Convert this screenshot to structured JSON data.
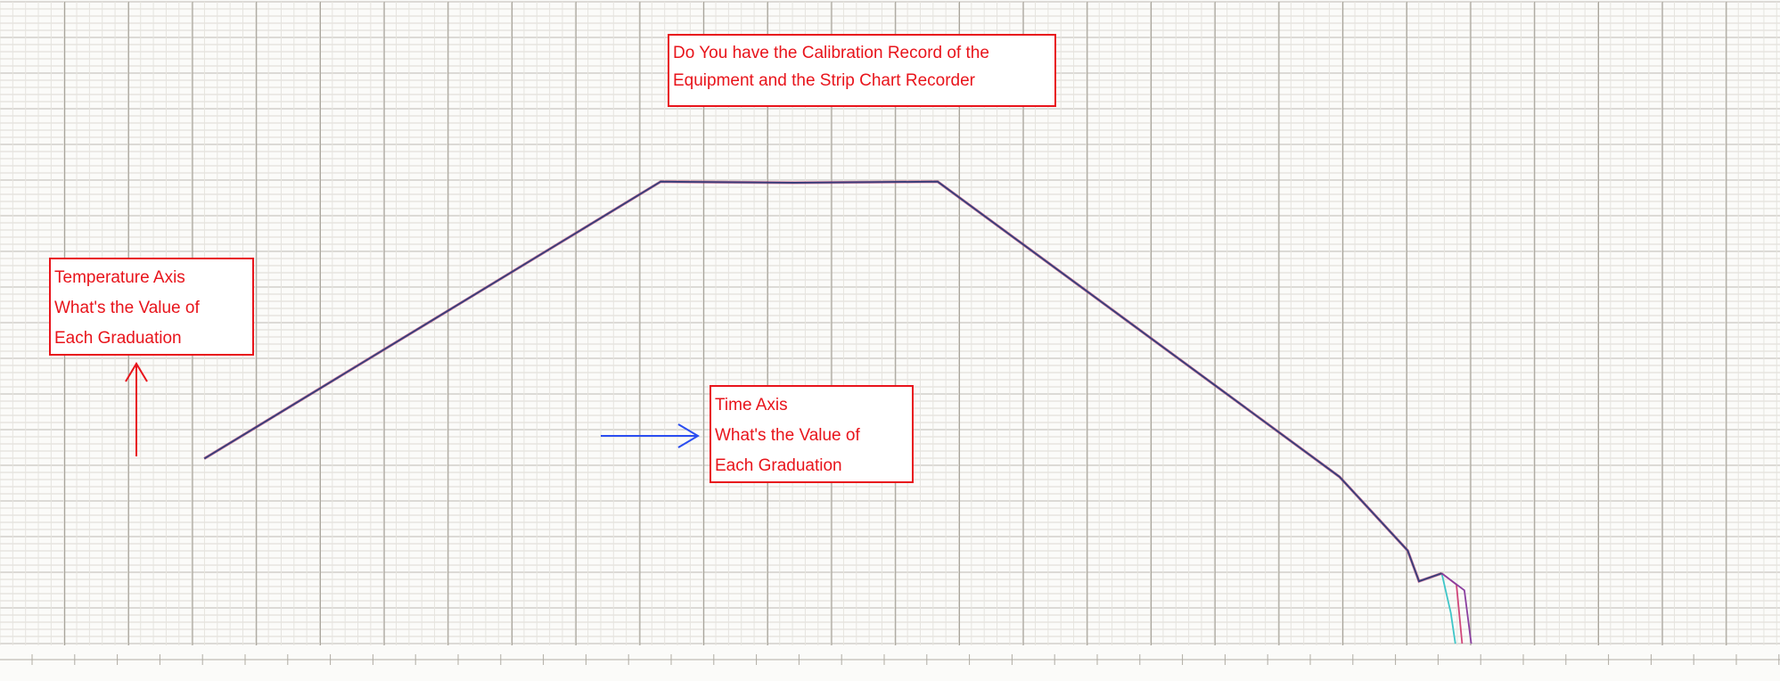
{
  "annotations": {
    "calibration": {
      "lines": [
        "Do You have the Calibration Record of the",
        "Equipment and the Strip Chart Recorder"
      ]
    },
    "temperature_axis": {
      "lines": [
        "Temperature Axis",
        "What's the Value of",
        "Each Graduation"
      ]
    },
    "time_axis": {
      "lines": [
        "Time Axis",
        "What's the Value of",
        "Each Graduation"
      ]
    }
  }
}
